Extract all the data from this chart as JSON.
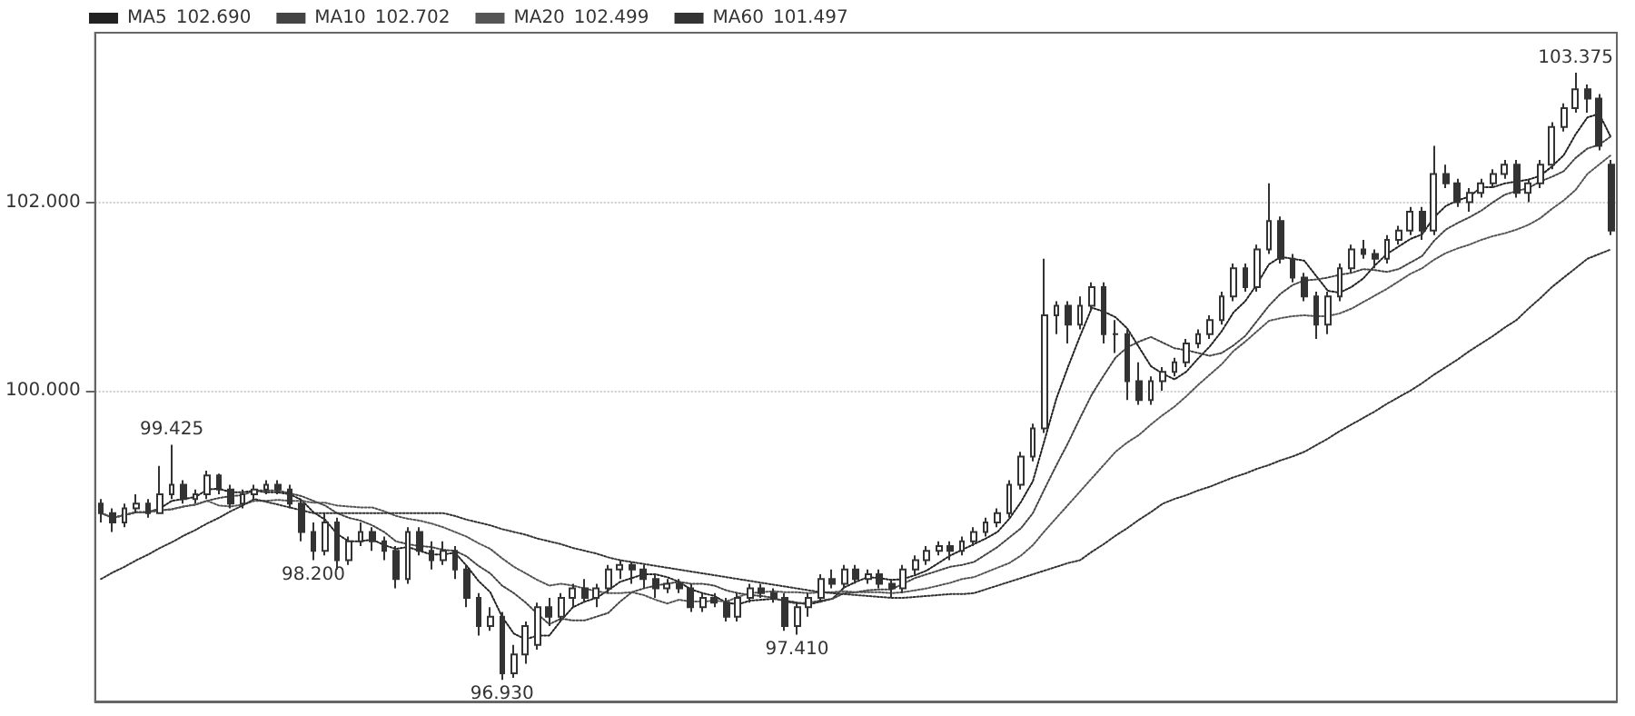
{
  "chart_data": {
    "type": "candlestick",
    "categories": [
      null,
      null,
      null,
      null,
      null,
      null,
      null,
      null,
      null,
      null,
      null,
      null,
      null,
      null,
      null,
      null,
      null,
      null,
      null,
      null,
      null,
      null,
      null,
      null,
      null,
      null,
      null,
      null,
      null,
      null,
      null,
      null,
      null,
      null,
      null,
      null,
      null,
      null,
      null,
      null,
      null,
      null,
      null,
      null,
      null,
      null,
      null,
      null,
      null,
      null,
      null,
      null,
      null,
      null,
      null,
      null,
      null,
      null,
      null,
      null,
      null,
      null,
      null,
      null,
      null,
      null,
      null,
      null,
      null,
      null,
      null,
      null,
      null,
      null,
      null,
      null,
      null,
      null,
      null,
      null,
      null,
      null,
      null,
      null,
      null,
      null,
      null,
      null,
      null,
      null,
      null,
      null,
      null,
      null,
      null,
      null,
      null,
      null,
      null,
      null,
      null,
      null,
      null,
      null,
      null,
      null,
      null,
      null,
      null,
      null,
      null,
      null,
      null,
      null,
      null,
      null,
      null,
      null,
      null,
      null,
      null,
      null,
      null,
      null,
      null,
      null,
      null,
      null,
      null
    ],
    "ylim": [
      96.7,
      103.8
    ],
    "yticks": [
      {
        "value": 100,
        "label": "100.000"
      },
      {
        "value": 102,
        "label": "102.000"
      }
    ],
    "grid": "y",
    "legend": "top left",
    "line_style": "dotted",
    "annotations": [
      "102.690",
      "102.702",
      "102.499",
      "101.497",
      {
        "text": "99.425",
        "y": 99.425
      },
      {
        "text": "98.200",
        "y": 98.2
      },
      {
        "text": "96.930",
        "y": 96.93
      },
      {
        "text": "97.410",
        "y": 97.41
      },
      {
        "text": "103.375",
        "y": 103.375
      }
    ],
    "series": [
      {
        "type": "candlestick",
        "color": "#333333",
        "ohlc": [
          [
            98.8,
            98.85,
            98.6,
            98.7
          ],
          [
            98.7,
            98.75,
            98.5,
            98.6
          ],
          [
            98.6,
            98.8,
            98.55,
            98.75
          ],
          [
            98.75,
            98.9,
            98.7,
            98.8
          ],
          [
            98.8,
            98.85,
            98.65,
            98.7
          ],
          [
            98.7,
            99.2,
            98.7,
            98.9
          ],
          [
            98.9,
            99.425,
            98.85,
            99.0
          ],
          [
            99.0,
            99.05,
            98.8,
            98.85
          ],
          [
            98.85,
            98.95,
            98.8,
            98.9
          ],
          [
            98.9,
            99.15,
            98.85,
            99.1
          ],
          [
            99.1,
            99.12,
            98.9,
            98.95
          ],
          [
            98.95,
            99.0,
            98.75,
            98.8
          ],
          [
            98.8,
            98.95,
            98.75,
            98.9
          ],
          [
            98.9,
            99.0,
            98.85,
            98.95
          ],
          [
            98.95,
            99.05,
            98.9,
            99.0
          ],
          [
            99.0,
            99.05,
            98.9,
            98.95
          ],
          [
            98.95,
            99.0,
            98.75,
            98.8
          ],
          [
            98.8,
            98.85,
            98.4,
            98.5
          ],
          [
            98.5,
            98.6,
            98.2,
            98.3
          ],
          [
            98.3,
            98.7,
            98.25,
            98.6
          ],
          [
            98.6,
            98.65,
            98.1,
            98.2
          ],
          [
            98.2,
            98.45,
            98.15,
            98.4
          ],
          [
            98.4,
            98.6,
            98.35,
            98.5
          ],
          [
            98.5,
            98.55,
            98.3,
            98.4
          ],
          [
            98.4,
            98.45,
            98.2,
            98.3
          ],
          [
            98.3,
            98.35,
            97.9,
            98.0
          ],
          [
            98.0,
            98.55,
            97.95,
            98.5
          ],
          [
            98.5,
            98.55,
            98.25,
            98.3
          ],
          [
            98.3,
            98.4,
            98.1,
            98.2
          ],
          [
            98.2,
            98.4,
            98.15,
            98.3
          ],
          [
            98.3,
            98.35,
            98.0,
            98.1
          ],
          [
            98.1,
            98.15,
            97.7,
            97.8
          ],
          [
            97.8,
            97.85,
            97.4,
            97.5
          ],
          [
            97.5,
            97.7,
            97.45,
            97.6
          ],
          [
            97.6,
            97.65,
            96.93,
            97.0
          ],
          [
            97.0,
            97.3,
            96.95,
            97.2
          ],
          [
            97.2,
            97.55,
            97.1,
            97.5
          ],
          [
            97.3,
            97.75,
            97.25,
            97.7
          ],
          [
            97.7,
            97.8,
            97.5,
            97.6
          ],
          [
            97.6,
            97.85,
            97.55,
            97.8
          ],
          [
            97.8,
            97.95,
            97.7,
            97.9
          ],
          [
            97.9,
            98.0,
            97.75,
            97.8
          ],
          [
            97.8,
            97.95,
            97.7,
            97.9
          ],
          [
            97.9,
            98.15,
            97.85,
            98.1
          ],
          [
            98.1,
            98.2,
            98.0,
            98.15
          ],
          [
            98.15,
            98.18,
            97.95,
            98.1
          ],
          [
            98.1,
            98.15,
            97.9,
            98.0
          ],
          [
            98.0,
            98.05,
            97.8,
            97.9
          ],
          [
            97.9,
            98.0,
            97.85,
            97.95
          ],
          [
            97.95,
            98.0,
            97.85,
            97.9
          ],
          [
            97.9,
            97.95,
            97.65,
            97.7
          ],
          [
            97.7,
            97.85,
            97.65,
            97.8
          ],
          [
            97.8,
            97.85,
            97.7,
            97.75
          ],
          [
            97.75,
            97.8,
            97.55,
            97.6
          ],
          [
            97.6,
            97.85,
            97.55,
            97.8
          ],
          [
            97.8,
            97.95,
            97.75,
            97.9
          ],
          [
            97.9,
            97.95,
            97.8,
            97.85
          ],
          [
            97.85,
            97.9,
            97.75,
            97.8
          ],
          [
            97.8,
            97.85,
            97.45,
            97.5
          ],
          [
            97.5,
            97.75,
            97.41,
            97.7
          ],
          [
            97.7,
            97.85,
            97.6,
            97.8
          ],
          [
            97.8,
            98.05,
            97.75,
            98.0
          ],
          [
            98.0,
            98.1,
            97.9,
            97.95
          ],
          [
            97.95,
            98.15,
            97.9,
            98.1
          ],
          [
            98.1,
            98.15,
            97.95,
            98.0
          ],
          [
            98.0,
            98.1,
            97.95,
            98.05
          ],
          [
            98.05,
            98.1,
            97.9,
            97.95
          ],
          [
            97.95,
            98.0,
            97.8,
            97.9
          ],
          [
            97.9,
            98.15,
            97.85,
            98.1
          ],
          [
            98.1,
            98.25,
            98.05,
            98.2
          ],
          [
            98.2,
            98.35,
            98.15,
            98.3
          ],
          [
            98.3,
            98.4,
            98.25,
            98.35
          ],
          [
            98.35,
            98.4,
            98.2,
            98.3
          ],
          [
            98.3,
            98.45,
            98.25,
            98.4
          ],
          [
            98.4,
            98.55,
            98.35,
            98.5
          ],
          [
            98.5,
            98.65,
            98.45,
            98.6
          ],
          [
            98.6,
            98.75,
            98.55,
            98.7
          ],
          [
            98.7,
            99.05,
            98.65,
            99.0
          ],
          [
            99.0,
            99.35,
            98.95,
            99.3
          ],
          [
            99.3,
            99.65,
            99.25,
            99.6
          ],
          [
            99.6,
            101.4,
            99.55,
            100.8
          ],
          [
            100.8,
            100.95,
            100.6,
            100.9
          ],
          [
            100.9,
            100.95,
            100.5,
            100.7
          ],
          [
            100.7,
            101.0,
            100.65,
            100.9
          ],
          [
            100.9,
            101.15,
            100.85,
            101.1
          ],
          [
            101.1,
            101.15,
            100.5,
            100.6
          ],
          [
            100.6,
            100.75,
            100.4,
            100.6
          ],
          [
            100.6,
            100.65,
            99.9,
            100.1
          ],
          [
            100.1,
            100.3,
            99.85,
            99.9
          ],
          [
            99.9,
            100.15,
            99.85,
            100.1
          ],
          [
            100.1,
            100.25,
            100.0,
            100.2
          ],
          [
            100.2,
            100.35,
            100.15,
            100.3
          ],
          [
            100.3,
            100.55,
            100.25,
            100.5
          ],
          [
            100.5,
            100.65,
            100.45,
            100.6
          ],
          [
            100.6,
            100.8,
            100.55,
            100.75
          ],
          [
            100.75,
            101.05,
            100.7,
            101.0
          ],
          [
            101.0,
            101.35,
            100.95,
            101.3
          ],
          [
            101.3,
            101.35,
            101.05,
            101.1
          ],
          [
            101.1,
            101.55,
            101.05,
            101.5
          ],
          [
            101.5,
            102.2,
            101.45,
            101.8
          ],
          [
            101.8,
            101.85,
            101.35,
            101.4
          ],
          [
            101.4,
            101.45,
            101.15,
            101.2
          ],
          [
            101.2,
            101.25,
            100.95,
            101.0
          ],
          [
            101.0,
            101.05,
            100.55,
            100.7
          ],
          [
            100.7,
            101.05,
            100.6,
            101.0
          ],
          [
            101.0,
            101.35,
            100.95,
            101.3
          ],
          [
            101.3,
            101.55,
            101.25,
            101.5
          ],
          [
            101.5,
            101.6,
            101.4,
            101.45
          ],
          [
            101.45,
            101.5,
            101.3,
            101.4
          ],
          [
            101.4,
            101.65,
            101.35,
            101.6
          ],
          [
            101.6,
            101.75,
            101.55,
            101.7
          ],
          [
            101.7,
            101.95,
            101.65,
            101.9
          ],
          [
            101.9,
            101.95,
            101.6,
            101.7
          ],
          [
            101.7,
            102.6,
            101.65,
            102.3
          ],
          [
            102.3,
            102.4,
            102.15,
            102.2
          ],
          [
            102.2,
            102.25,
            101.95,
            102.0
          ],
          [
            102.0,
            102.15,
            101.9,
            102.1
          ],
          [
            102.1,
            102.25,
            102.05,
            102.2
          ],
          [
            102.2,
            102.35,
            102.15,
            102.3
          ],
          [
            102.3,
            102.45,
            102.25,
            102.4
          ],
          [
            102.4,
            102.45,
            102.05,
            102.1
          ],
          [
            102.1,
            102.25,
            102.0,
            102.2
          ],
          [
            102.2,
            102.45,
            102.15,
            102.4
          ],
          [
            102.4,
            102.85,
            102.35,
            102.8
          ],
          [
            102.8,
            103.05,
            102.75,
            103.0
          ],
          [
            103.0,
            103.375,
            102.95,
            103.2
          ],
          [
            103.2,
            103.25,
            102.95,
            103.1
          ],
          [
            103.1,
            103.15,
            102.55,
            102.6
          ],
          [
            102.4,
            102.45,
            101.65,
            101.7
          ]
        ]
      },
      {
        "type": "line",
        "name": "MA5",
        "color": "#222222",
        "values": [
          98.7,
          98.65,
          98.68,
          98.71,
          98.71,
          98.75,
          98.83,
          98.85,
          98.87,
          98.95,
          98.96,
          98.92,
          98.92,
          98.94,
          98.92,
          98.92,
          98.9,
          98.84,
          98.71,
          98.63,
          98.48,
          98.4,
          98.4,
          98.42,
          98.36,
          98.32,
          98.34,
          98.3,
          98.26,
          98.26,
          98.28,
          98.14,
          97.98,
          97.86,
          97.6,
          97.42,
          97.36,
          97.4,
          97.4,
          97.56,
          97.7,
          97.76,
          97.8,
          97.88,
          97.97,
          98.01,
          98.05,
          98.05,
          98.02,
          97.97,
          97.89,
          97.85,
          97.82,
          97.75,
          97.73,
          97.77,
          97.78,
          97.79,
          97.77,
          97.75,
          97.73,
          97.76,
          97.79,
          97.91,
          97.97,
          98.02,
          98.01,
          97.99,
          98.0,
          98.04,
          98.09,
          98.17,
          98.25,
          98.31,
          98.37,
          98.43,
          98.5,
          98.64,
          98.82,
          99.04,
          99.48,
          99.92,
          100.26,
          100.58,
          100.88,
          100.84,
          100.78,
          100.66,
          100.46,
          100.26,
          100.18,
          100.12,
          100.2,
          100.34,
          100.47,
          100.63,
          100.83,
          100.95,
          101.13,
          101.34,
          101.42,
          101.4,
          101.38,
          101.22,
          101.06,
          101.04,
          101.1,
          101.19,
          101.33,
          101.45,
          101.53,
          101.61,
          101.66,
          101.84,
          101.96,
          102.02,
          102.06,
          102.16,
          102.16,
          102.2,
          102.22,
          102.24,
          102.28,
          102.38,
          102.5,
          102.72,
          102.9,
          102.94,
          102.69
        ]
      },
      {
        "type": "line",
        "name": "MA10",
        "color": "#444444",
        "values": [
          98.7,
          98.65,
          98.68,
          98.71,
          98.71,
          98.73,
          98.74,
          98.77,
          98.79,
          98.83,
          98.86,
          98.88,
          98.89,
          98.94,
          98.94,
          98.94,
          98.91,
          98.88,
          98.83,
          98.78,
          98.7,
          98.65,
          98.62,
          98.57,
          98.5,
          98.4,
          98.37,
          98.35,
          98.34,
          98.31,
          98.3,
          98.24,
          98.14,
          98.06,
          97.93,
          97.85,
          97.75,
          97.63,
          97.52,
          97.58,
          97.56,
          97.56,
          97.6,
          97.64,
          97.76,
          97.86,
          97.9,
          97.93,
          97.95,
          97.97,
          97.95,
          97.95,
          97.93,
          97.88,
          97.85,
          97.83,
          97.82,
          97.8,
          97.76,
          97.74,
          97.75,
          97.77,
          97.79,
          97.85,
          97.86,
          97.88,
          97.89,
          97.89,
          97.95,
          98.01,
          98.05,
          98.09,
          98.13,
          98.15,
          98.18,
          98.26,
          98.34,
          98.44,
          98.54,
          98.7,
          98.96,
          99.21,
          99.45,
          99.71,
          99.96,
          100.16,
          100.35,
          100.46,
          100.52,
          100.57,
          100.51,
          100.45,
          100.43,
          100.4,
          100.37,
          100.4,
          100.48,
          100.58,
          100.74,
          100.9,
          101.03,
          101.12,
          101.17,
          101.18,
          101.2,
          101.23,
          101.25,
          101.29,
          101.28,
          101.26,
          101.29,
          101.36,
          101.43,
          101.59,
          101.71,
          101.78,
          101.84,
          101.91,
          102.0,
          102.08,
          102.12,
          102.15,
          102.22,
          102.27,
          102.33,
          102.47,
          102.57,
          102.61,
          102.7
        ]
      },
      {
        "type": "line",
        "name": "MA20",
        "color": "#555555",
        "values": [
          98.7,
          98.65,
          98.68,
          98.71,
          98.71,
          98.73,
          98.74,
          98.77,
          98.79,
          98.83,
          98.78,
          98.77,
          98.79,
          98.83,
          98.83,
          98.84,
          98.83,
          98.83,
          98.81,
          98.81,
          98.78,
          98.77,
          98.76,
          98.76,
          98.72,
          98.67,
          98.64,
          98.62,
          98.59,
          98.55,
          98.5,
          98.45,
          98.38,
          98.32,
          98.22,
          98.13,
          98.06,
          97.99,
          97.93,
          97.95,
          97.93,
          97.9,
          97.87,
          97.85,
          97.85,
          97.86,
          97.83,
          97.78,
          97.74,
          97.78,
          97.76,
          97.76,
          97.77,
          97.76,
          97.81,
          97.85,
          97.86,
          97.87,
          97.86,
          97.86,
          97.85,
          97.86,
          97.86,
          97.87,
          97.86,
          97.86,
          97.86,
          97.85,
          97.86,
          97.88,
          97.9,
          97.93,
          97.96,
          98.0,
          98.02,
          98.07,
          98.12,
          98.17,
          98.25,
          98.36,
          98.51,
          98.65,
          98.79,
          98.93,
          99.07,
          99.21,
          99.35,
          99.45,
          99.53,
          99.64,
          99.74,
          99.83,
          99.94,
          100.06,
          100.17,
          100.28,
          100.42,
          100.52,
          100.63,
          100.74,
          100.77,
          100.79,
          100.8,
          100.79,
          100.79,
          100.82,
          100.87,
          100.94,
          101.01,
          101.08,
          101.16,
          101.24,
          101.3,
          101.39,
          101.46,
          101.51,
          101.55,
          101.6,
          101.64,
          101.67,
          101.71,
          101.76,
          101.83,
          101.93,
          102.02,
          102.13,
          102.3,
          102.4,
          102.5
        ]
      },
      {
        "type": "line",
        "name": "MA60",
        "color": "#333333",
        "values": [
          98.0,
          98.07,
          98.13,
          98.2,
          98.26,
          98.33,
          98.39,
          98.46,
          98.52,
          98.59,
          98.65,
          98.72,
          98.78,
          98.85,
          98.82,
          98.79,
          98.76,
          98.73,
          98.7,
          98.7,
          98.7,
          98.7,
          98.7,
          98.7,
          98.7,
          98.7,
          98.7,
          98.7,
          98.7,
          98.7,
          98.67,
          98.63,
          98.6,
          98.57,
          98.53,
          98.5,
          98.47,
          98.43,
          98.4,
          98.37,
          98.33,
          98.3,
          98.27,
          98.23,
          98.2,
          98.18,
          98.16,
          98.14,
          98.12,
          98.1,
          98.08,
          98.06,
          98.04,
          98.02,
          98.0,
          97.98,
          97.96,
          97.94,
          97.92,
          97.9,
          97.88,
          97.86,
          97.85,
          97.84,
          97.83,
          97.82,
          97.81,
          97.8,
          97.8,
          97.81,
          97.82,
          97.83,
          97.84,
          97.84,
          97.85,
          97.89,
          97.93,
          97.97,
          98.01,
          98.05,
          98.09,
          98.13,
          98.17,
          98.2,
          98.29,
          98.37,
          98.46,
          98.54,
          98.63,
          98.71,
          98.8,
          98.85,
          98.89,
          98.94,
          98.98,
          99.03,
          99.08,
          99.12,
          99.17,
          99.21,
          99.26,
          99.3,
          99.35,
          99.42,
          99.49,
          99.57,
          99.64,
          99.71,
          99.78,
          99.86,
          99.93,
          100.0,
          100.08,
          100.17,
          100.25,
          100.33,
          100.42,
          100.5,
          100.58,
          100.67,
          100.75,
          100.87,
          100.98,
          101.1,
          101.2,
          101.3,
          101.4,
          101.45,
          101.5
        ]
      }
    ]
  }
}
